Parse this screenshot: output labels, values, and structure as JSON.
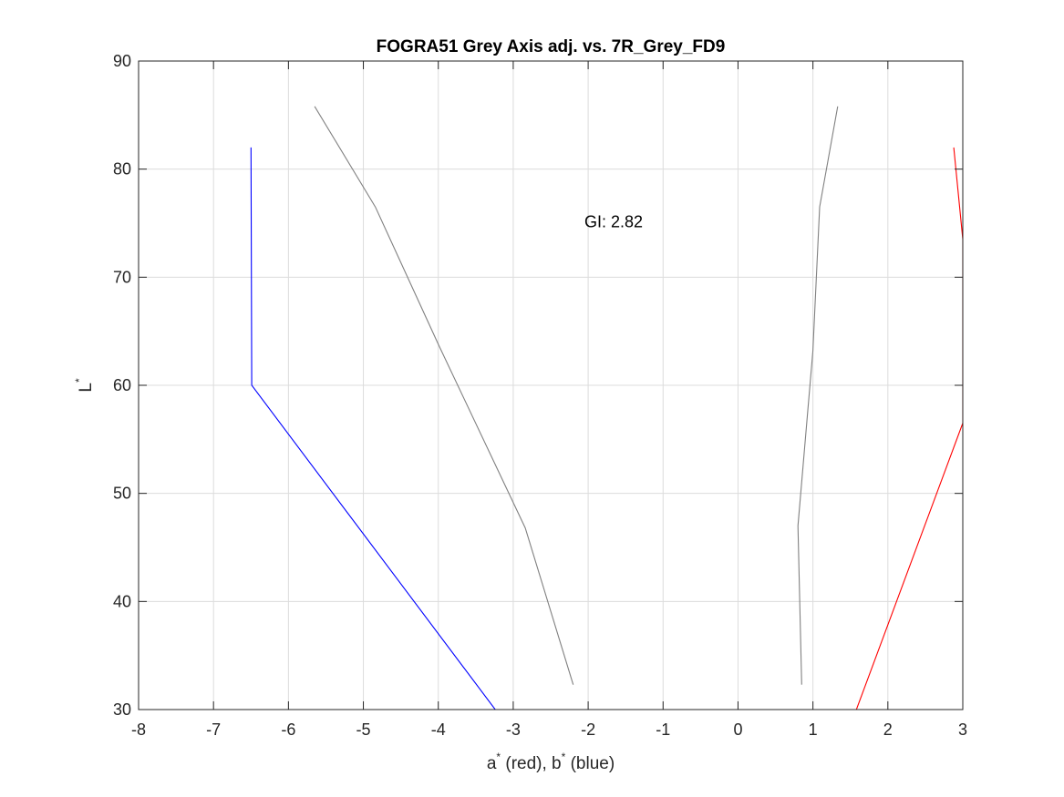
{
  "chart_data": {
    "type": "line",
    "title": "FOGRA51 Grey Axis adj. vs. 7R_Grey_FD9",
    "xlabel": {
      "a": "a",
      "a_sup": "*",
      "a_rest": " (red), b",
      "b_sup": "*",
      "b_rest": " (blue)"
    },
    "ylabel": {
      "base": "L",
      "sup": "*"
    },
    "xlim": [
      -8,
      3
    ],
    "ylim": [
      30,
      90
    ],
    "xticks": [
      -8,
      -7,
      -6,
      -5,
      -4,
      -3,
      -2,
      -1,
      0,
      1,
      2,
      3
    ],
    "yticks": [
      30,
      40,
      50,
      60,
      70,
      80,
      90
    ],
    "grid": true,
    "annotations": [
      {
        "text": "GI: 2.82",
        "x": -2.05,
        "y": 74.6
      }
    ],
    "series": [
      {
        "color": "#0000ff",
        "x": [
          -6.5,
          -6.49,
          -3.24
        ],
        "y": [
          82,
          60,
          30
        ]
      },
      {
        "color": "#ff0000",
        "x": [
          2.88,
          3.0,
          3.0,
          1.58
        ],
        "y": [
          82,
          73.5,
          56.5,
          30
        ]
      },
      {
        "color": "#808080",
        "x": [
          -5.65,
          -4.84,
          -4.0,
          -2.84,
          -2.2
        ],
        "y": [
          85.8,
          76.5,
          63.8,
          46.8,
          32.3
        ]
      },
      {
        "color": "#808080",
        "x": [
          1.33,
          1.09,
          1.0,
          0.8,
          0.85
        ],
        "y": [
          85.8,
          76.5,
          63.2,
          47.0,
          32.3
        ]
      }
    ]
  }
}
